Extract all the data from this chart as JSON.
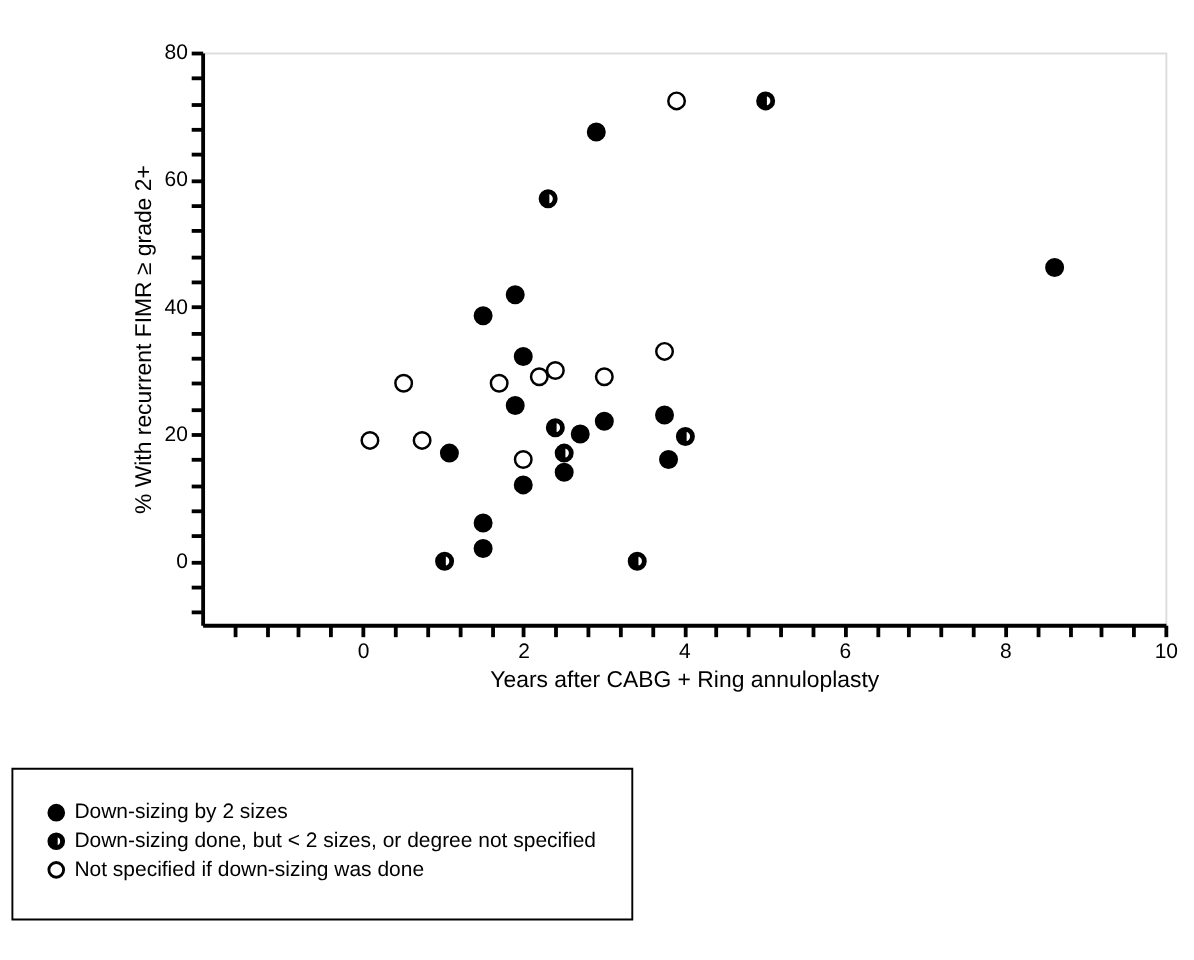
{
  "chart_data": {
    "type": "scatter",
    "xlabel": "Years after CABG + Ring annuloplasty",
    "ylabel": "% With recurrent FIMR ≥ grade 2+",
    "xlim": [
      -2,
      10
    ],
    "ylim": [
      -10,
      80
    ],
    "xticks": [
      {
        "value": -1.6,
        "label": null
      },
      {
        "value": -1.2,
        "label": null
      },
      {
        "value": -0.8,
        "label": null
      },
      {
        "value": -0.4,
        "label": null
      },
      0,
      {
        "value": 0.4,
        "label": null
      },
      {
        "value": 0.8,
        "label": null
      },
      {
        "value": 1.2,
        "label": null
      },
      {
        "value": 1.6,
        "label": null
      },
      2,
      {
        "value": 2.4,
        "label": null
      },
      {
        "value": 2.8,
        "label": null
      },
      {
        "value": 3.2,
        "label": null
      },
      {
        "value": 3.6,
        "label": null
      },
      4,
      {
        "value": 4.4,
        "label": null
      },
      {
        "value": 4.8,
        "label": null
      },
      {
        "value": 5.2,
        "label": null
      },
      {
        "value": 5.6,
        "label": null
      },
      6,
      {
        "value": 6.4,
        "label": null
      },
      {
        "value": 6.8,
        "label": null
      },
      {
        "value": 7.2,
        "label": null
      },
      {
        "value": 7.6,
        "label": null
      },
      8,
      {
        "value": 8.4,
        "label": null
      },
      {
        "value": 8.8,
        "label": null
      },
      {
        "value": 9.2,
        "label": null
      },
      {
        "value": 9.6,
        "label": null
      },
      10
    ],
    "yticks": [
      {
        "value": -8,
        "label": null
      },
      {
        "value": -4,
        "label": null
      },
      0,
      {
        "value": 4,
        "label": null
      },
      {
        "value": 8,
        "label": null
      },
      {
        "value": 12,
        "label": null
      },
      {
        "value": 16,
        "label": null
      },
      20,
      {
        "value": 24,
        "label": null
      },
      {
        "value": 28,
        "label": null
      },
      {
        "value": 32,
        "label": null
      },
      {
        "value": 36,
        "label": null
      },
      40,
      {
        "value": 44,
        "label": null
      },
      {
        "value": 48,
        "label": null
      },
      {
        "value": 52,
        "label": null
      },
      {
        "value": 56,
        "label": null
      },
      60,
      {
        "value": 64,
        "label": null
      },
      {
        "value": 68,
        "label": null
      },
      {
        "value": 72,
        "label": null
      },
      {
        "value": 76,
        "label": null
      },
      80
    ],
    "grid": false,
    "legend": "bottom",
    "marker": "circle",
    "series": [
      {
        "name": "Down-sizing by 2 sizes",
        "color": "#000000",
        "x": [
          1.08,
          1.5,
          1.5,
          1.5,
          1.9,
          1.9,
          2.0,
          2.0,
          2.51,
          2.71,
          2.91,
          3.01,
          3.76,
          3.81,
          8.62
        ],
        "values": [
          17,
          38.6,
          6,
          2,
          41.9,
          24.5,
          32.2,
          12,
          14,
          20,
          67.5,
          22,
          23,
          16,
          46.2
        ]
      },
      {
        "name": "Down-sizing done, but < 2 sizes, or degree not specified",
        "color": "#000000",
        "x": [
          1.02,
          2.31,
          2.4,
          2.51,
          3.42,
          4.02,
          5.02
        ],
        "values": [
          0,
          57,
          21,
          17,
          0,
          19.6,
          72.4
        ]
      },
      {
        "name": "Not specified if down-sizing was done",
        "color": "#000000",
        "x": [
          0.09,
          0.51,
          0.74,
          1.7,
          2.0,
          2.2,
          2.4,
          3.01,
          3.76,
          3.91
        ],
        "values": [
          19,
          28,
          19,
          28,
          16,
          29,
          30,
          29,
          33,
          72.4
        ]
      }
    ]
  }
}
